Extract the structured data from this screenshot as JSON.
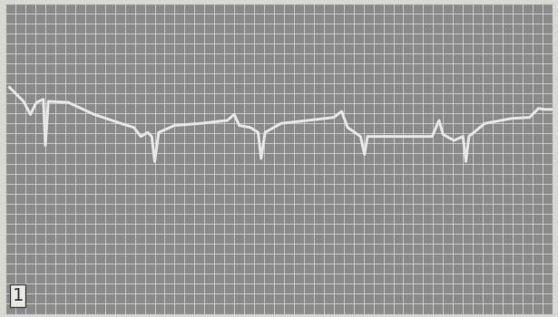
{
  "chart_data": {
    "type": "line",
    "annotation": "1",
    "x": [
      0.4,
      1.8,
      2.5,
      3.1,
      3.8,
      4.0,
      4.3,
      6.3,
      8.9,
      11.6,
      12.9,
      13.6,
      14.3,
      14.7,
      15.0,
      15.4,
      17.0,
      19.6,
      22.3,
      23.0,
      23.5,
      24.6,
      25.4,
      25.7,
      26.1,
      27.7,
      30.4,
      33.0,
      33.8,
      34.4,
      35.7,
      36.1,
      36.4,
      40.2,
      42.9,
      43.6,
      44.0,
      45.1,
      46.0,
      46.3,
      46.6,
      48.2,
      50.9,
      52.7,
      53.6,
      54.2,
      54.9
    ],
    "values": [
      22.6,
      21.2,
      19.9,
      21.1,
      21.4,
      16.8,
      21.2,
      21.1,
      19.9,
      19.0,
      18.6,
      17.7,
      18.1,
      17.7,
      15.2,
      18.1,
      18.8,
      19.0,
      19.3,
      19.9,
      18.8,
      18.6,
      18.1,
      15.5,
      18.1,
      19.0,
      19.3,
      19.6,
      20.2,
      18.6,
      17.7,
      15.9,
      17.7,
      17.7,
      17.7,
      19.3,
      17.9,
      17.3,
      17.7,
      15.2,
      17.7,
      19.0,
      19.5,
      19.6,
      20.5,
      20.4,
      20.4
    ],
    "color": "#e6e6e6",
    "xlim": [
      0,
      55
    ],
    "ylim": [
      0,
      31
    ],
    "xticks": [
      0,
      1,
      2,
      3,
      4,
      5,
      6,
      7,
      8,
      9,
      10,
      11,
      12,
      13,
      14,
      15,
      16,
      17,
      18,
      19,
      20,
      21,
      22,
      23,
      24,
      25,
      26,
      27,
      28,
      29,
      30,
      31,
      32,
      33,
      34,
      35,
      36,
      37,
      38,
      39,
      40,
      41,
      42,
      43,
      44,
      45,
      46,
      47,
      48,
      49,
      50,
      51,
      52,
      53,
      54,
      55
    ],
    "yticks": [
      0,
      1,
      2,
      3,
      4,
      5,
      6,
      7,
      8,
      9,
      10,
      11,
      12,
      13,
      14,
      15,
      16,
      17,
      18,
      19,
      20,
      21,
      22,
      23,
      24,
      25,
      26,
      27,
      28,
      29,
      30,
      31
    ],
    "grid": true,
    "tick_labels": false
  }
}
